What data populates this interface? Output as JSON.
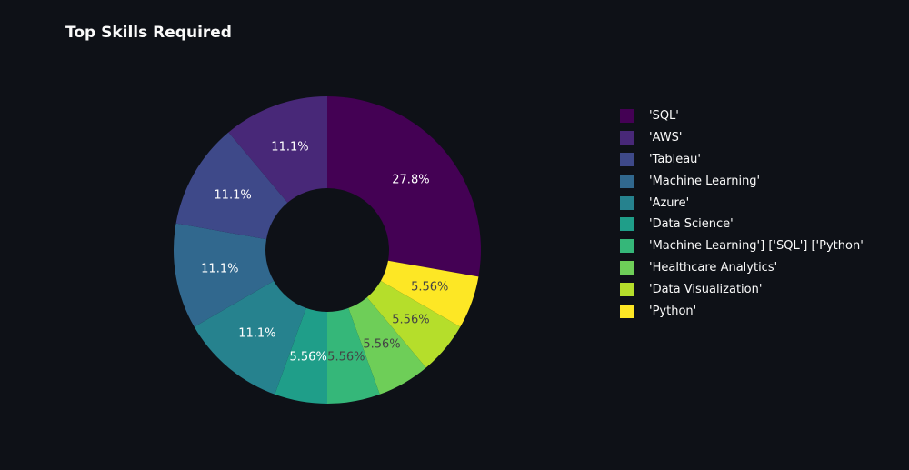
{
  "chart_data": {
    "type": "pie",
    "hole": true,
    "title": "Top Skills Required",
    "labels": [
      "'SQL'",
      "'AWS'",
      "'Tableau'",
      "'Machine Learning'",
      "'Azure'",
      "'Data Science'",
      "'Machine Learning'] ['SQL'] ['Python'",
      "'Healthcare Analytics'",
      "'Data Visualization'",
      "'Python'"
    ],
    "values": [
      5,
      2,
      2,
      2,
      2,
      1,
      1,
      1,
      1,
      1
    ],
    "percent_labels": [
      "27.8%",
      "11.1%",
      "11.1%",
      "11.1%",
      "11.1%",
      "5.56%",
      "5.56%",
      "5.56%",
      "5.56%",
      "5.56%"
    ],
    "colors": [
      "#440154",
      "#482878",
      "#3e4989",
      "#31688e",
      "#26828e",
      "#1f9e89",
      "#35b779",
      "#6ece58",
      "#b5de2b",
      "#fde725"
    ],
    "label_colors": [
      "#ffffff",
      "#ffffff",
      "#ffffff",
      "#ffffff",
      "#ffffff",
      "#ffffff",
      "#444444",
      "#444444",
      "#444444",
      "#444444"
    ],
    "legend_position": "right",
    "slice_order": [
      "'SQL'",
      "'Python'",
      "'Data Visualization'",
      "'Healthcare Analytics'",
      "'Machine Learning'] ['SQL'] ['Python'",
      "'Data Science'",
      "'Azure'",
      "'Machine Learning'",
      "'Tableau'",
      "'AWS'"
    ]
  }
}
